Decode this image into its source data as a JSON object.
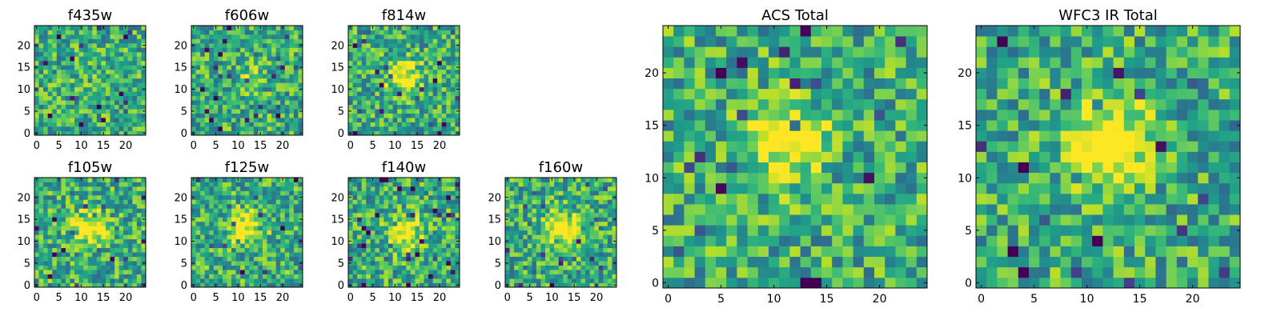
{
  "chart_data": [
    {
      "type": "heatmap",
      "title": "f435w",
      "xticks": [
        "0",
        "5",
        "10",
        "15",
        "20"
      ],
      "yticks": [
        "0",
        "5",
        "10",
        "15",
        "20"
      ],
      "xlim": [
        0,
        24
      ],
      "ylim": [
        0,
        24
      ],
      "grid_size": 25,
      "peak": {
        "x": 12,
        "y": 12,
        "strength": 0.05
      },
      "seed": 11
    },
    {
      "type": "heatmap",
      "title": "f606w",
      "xticks": [
        "0",
        "5",
        "10",
        "15",
        "20"
      ],
      "yticks": [
        "0",
        "5",
        "10",
        "15",
        "20"
      ],
      "xlim": [
        0,
        24
      ],
      "ylim": [
        0,
        24
      ],
      "grid_size": 25,
      "peak": {
        "x": 13,
        "y": 13,
        "strength": 0.12
      },
      "seed": 23
    },
    {
      "type": "heatmap",
      "title": "f814w",
      "xticks": [
        "0",
        "5",
        "10",
        "15",
        "20"
      ],
      "yticks": [
        "0",
        "5",
        "10",
        "15",
        "20"
      ],
      "xlim": [
        0,
        24
      ],
      "ylim": [
        0,
        24
      ],
      "grid_size": 25,
      "peak": {
        "x": 12,
        "y": 13,
        "strength": 0.45
      },
      "seed": 37
    },
    {
      "type": "heatmap",
      "title": "f105w",
      "xticks": [
        "0",
        "5",
        "10",
        "15",
        "20"
      ],
      "yticks": [
        "0",
        "5",
        "10",
        "15",
        "20"
      ],
      "xlim": [
        0,
        24
      ],
      "ylim": [
        0,
        24
      ],
      "grid_size": 25,
      "peak": {
        "x": 12,
        "y": 13,
        "strength": 0.5
      },
      "seed": 41
    },
    {
      "type": "heatmap",
      "title": "f125w",
      "xticks": [
        "0",
        "5",
        "10",
        "15",
        "20"
      ],
      "yticks": [
        "0",
        "5",
        "10",
        "15",
        "20"
      ],
      "xlim": [
        0,
        24
      ],
      "ylim": [
        0,
        24
      ],
      "grid_size": 25,
      "peak": {
        "x": 12,
        "y": 13,
        "strength": 0.45
      },
      "seed": 53
    },
    {
      "type": "heatmap",
      "title": "f140w",
      "xticks": [
        "0",
        "5",
        "10",
        "15",
        "20"
      ],
      "yticks": [
        "0",
        "5",
        "10",
        "15",
        "20"
      ],
      "xlim": [
        0,
        24
      ],
      "ylim": [
        0,
        24
      ],
      "grid_size": 25,
      "peak": {
        "x": 12,
        "y": 12,
        "strength": 0.5
      },
      "seed": 67
    },
    {
      "type": "heatmap",
      "title": "f160w",
      "xticks": [
        "0",
        "5",
        "10",
        "15",
        "20"
      ],
      "yticks": [
        "0",
        "5",
        "10",
        "15",
        "20"
      ],
      "xlim": [
        0,
        24
      ],
      "ylim": [
        0,
        24
      ],
      "grid_size": 25,
      "peak": {
        "x": 12,
        "y": 13,
        "strength": 0.55
      },
      "seed": 79
    },
    {
      "type": "heatmap",
      "title": "ACS Total",
      "xticks": [
        "0",
        "5",
        "10",
        "15",
        "20"
      ],
      "yticks": [
        "0",
        "5",
        "10",
        "15",
        "20"
      ],
      "xlim": [
        0,
        24
      ],
      "ylim": [
        0,
        24
      ],
      "grid_size": 25,
      "peak": {
        "x": 11,
        "y": 13,
        "strength": 0.45
      },
      "seed": 97
    },
    {
      "type": "heatmap",
      "title": "WFC3 IR Total",
      "xticks": [
        "0",
        "5",
        "10",
        "15",
        "20"
      ],
      "yticks": [
        "0",
        "5",
        "10",
        "15",
        "20"
      ],
      "xlim": [
        0,
        24
      ],
      "ylim": [
        0,
        24
      ],
      "grid_size": 25,
      "peak": {
        "x": 12,
        "y": 13,
        "strength": 0.65
      },
      "seed": 131
    }
  ],
  "colormap": "viridis"
}
